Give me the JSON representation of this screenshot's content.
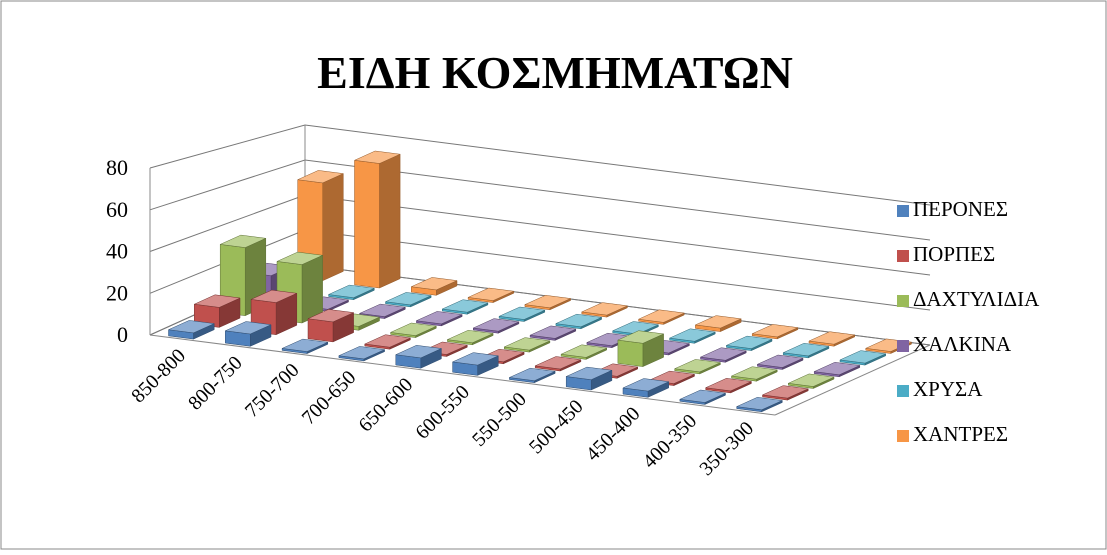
{
  "chart_data": {
    "type": "bar3d",
    "title": "ΕΙΔΗ ΚΟΣΜΗΜΑΤΩΝ",
    "categories": [
      "850-800",
      "800-750",
      "750-700",
      "700-650",
      "650-600",
      "600-550",
      "550-500",
      "500-450",
      "450-400",
      "400-350",
      "350-300"
    ],
    "series": [
      {
        "name": "ΠΕΡΟΝΕΣ",
        "color": "#4f81bd",
        "values": [
          3,
          6,
          0,
          0,
          5,
          5,
          0,
          5,
          3,
          0,
          0
        ]
      },
      {
        "name": "ΠΟΡΠΕΣ",
        "color": "#c0504d",
        "values": [
          10,
          16,
          10,
          0,
          0,
          0,
          0,
          1,
          0,
          0,
          1
        ]
      },
      {
        "name": "ΔΑΧΤΥΛΙΔΙΑ",
        "color": "#9bbb59",
        "values": [
          35,
          30,
          2,
          0,
          0,
          0,
          0,
          12,
          0,
          0,
          0
        ]
      },
      {
        "name": "ΧΑΛΚΙΝΑ",
        "color": "#8064a2",
        "values": [
          15,
          0,
          0,
          0,
          0,
          0,
          0,
          0,
          0,
          0,
          0
        ]
      },
      {
        "name": "ΧΡΥΣΑ",
        "color": "#4bacc6",
        "values": [
          3,
          0,
          0,
          0,
          0,
          0,
          0,
          0,
          0,
          0,
          0
        ]
      },
      {
        "name": "ΧΑΝΤΡΕΣ",
        "color": "#f79646",
        "values": [
          55,
          70,
          3,
          0,
          0,
          0,
          0,
          2,
          1,
          0,
          0
        ]
      }
    ],
    "ylim": [
      0,
      80
    ],
    "yticks": [
      0,
      20,
      40,
      60,
      80
    ],
    "grid": true,
    "legend": "right"
  }
}
